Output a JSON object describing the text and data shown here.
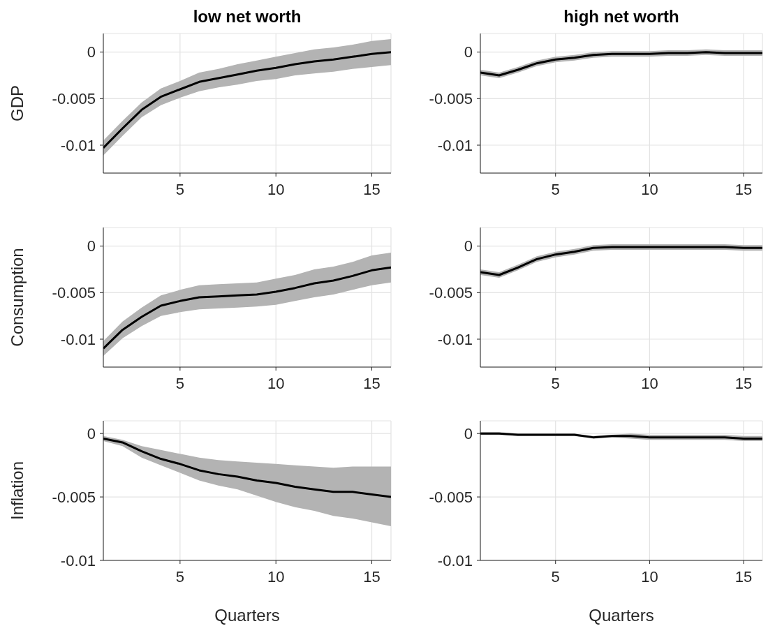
{
  "chart_data": [
    {
      "type": "line",
      "title": "low net worth",
      "ylabel": "GDP",
      "x": [
        1,
        2,
        3,
        4,
        5,
        6,
        7,
        8,
        9,
        10,
        11,
        12,
        13,
        14,
        15,
        16
      ],
      "xlim": [
        1,
        16
      ],
      "xticks": [
        5,
        10,
        15
      ],
      "ylim": [
        -0.013,
        0.002
      ],
      "yticks": [
        -0.01,
        -0.005,
        0
      ],
      "grid": true,
      "series": [
        {
          "color": "#000000",
          "values": [
            -0.0103,
            -0.0082,
            -0.0062,
            -0.0048,
            -0.004,
            -0.0032,
            -0.0028,
            -0.0024,
            -0.002,
            -0.0017,
            -0.0013,
            -0.001,
            -0.0008,
            -0.0005,
            -0.0002,
            0
          ],
          "lower": [
            -0.0111,
            -0.009,
            -0.007,
            -0.0057,
            -0.0049,
            -0.0042,
            -0.0038,
            -0.0035,
            -0.0031,
            -0.0029,
            -0.0025,
            -0.0023,
            -0.0021,
            -0.0018,
            -0.0016,
            -0.0014
          ],
          "upper": [
            -0.0095,
            -0.0074,
            -0.0054,
            -0.0039,
            -0.0031,
            -0.0022,
            -0.0018,
            -0.0013,
            -0.0009,
            -0.0005,
            -0.0001,
            0.0003,
            0.0005,
            0.0008,
            0.0012,
            0.0014
          ]
        }
      ]
    },
    {
      "type": "line",
      "title": "high net worth",
      "x": [
        1,
        2,
        3,
        4,
        5,
        6,
        7,
        8,
        9,
        10,
        11,
        12,
        13,
        14,
        15,
        16
      ],
      "xlim": [
        1,
        16
      ],
      "xticks": [
        5,
        10,
        15
      ],
      "ylim": [
        -0.013,
        0.002
      ],
      "yticks": [
        -0.01,
        -0.005,
        0
      ],
      "grid": true,
      "series": [
        {
          "color": "#000000",
          "values": [
            -0.0022,
            -0.0025,
            -0.0019,
            -0.0012,
            -0.0008,
            -0.0006,
            -0.0003,
            -0.0002,
            -0.0002,
            -0.0002,
            -0.0001,
            -0.0001,
            0,
            -0.0001,
            -0.0001,
            -0.0001
          ],
          "lower": [
            -0.0025,
            -0.0028,
            -0.0022,
            -0.0015,
            -0.0011,
            -0.0009,
            -0.0006,
            -0.0005,
            -0.0005,
            -0.0005,
            -0.0004,
            -0.0004,
            -0.0003,
            -0.0004,
            -0.0004,
            -0.0004
          ],
          "upper": [
            -0.0019,
            -0.0022,
            -0.0016,
            -0.0009,
            -0.0005,
            -0.0003,
            0,
            0.0001,
            0.0001,
            0.0001,
            0.0002,
            0.0002,
            0.0003,
            0.0002,
            0.0002,
            0.0002
          ]
        }
      ]
    },
    {
      "type": "line",
      "ylabel": "Consumption",
      "x": [
        1,
        2,
        3,
        4,
        5,
        6,
        7,
        8,
        9,
        10,
        11,
        12,
        13,
        14,
        15,
        16
      ],
      "xlim": [
        1,
        16
      ],
      "xticks": [
        5,
        10,
        15
      ],
      "ylim": [
        -0.013,
        0.002
      ],
      "yticks": [
        -0.01,
        -0.005,
        0
      ],
      "grid": true,
      "series": [
        {
          "color": "#000000",
          "values": [
            -0.011,
            -0.009,
            -0.0076,
            -0.0064,
            -0.0059,
            -0.0055,
            -0.0054,
            -0.0053,
            -0.0052,
            -0.0049,
            -0.0045,
            -0.004,
            -0.0037,
            -0.0032,
            -0.0026,
            -0.0023
          ],
          "lower": [
            -0.0118,
            -0.0099,
            -0.0086,
            -0.0075,
            -0.0071,
            -0.0068,
            -0.0067,
            -0.0066,
            -0.0065,
            -0.0063,
            -0.0059,
            -0.0055,
            -0.0052,
            -0.0047,
            -0.0042,
            -0.0039
          ],
          "upper": [
            -0.0102,
            -0.0081,
            -0.0066,
            -0.0053,
            -0.0047,
            -0.0042,
            -0.0041,
            -0.004,
            -0.0039,
            -0.0035,
            -0.0031,
            -0.0025,
            -0.0022,
            -0.0017,
            -0.001,
            -0.0007
          ]
        }
      ]
    },
    {
      "type": "line",
      "x": [
        1,
        2,
        3,
        4,
        5,
        6,
        7,
        8,
        9,
        10,
        11,
        12,
        13,
        14,
        15,
        16
      ],
      "xlim": [
        1,
        16
      ],
      "xticks": [
        5,
        10,
        15
      ],
      "ylim": [
        -0.013,
        0.002
      ],
      "yticks": [
        -0.01,
        -0.005,
        0
      ],
      "grid": true,
      "series": [
        {
          "color": "#000000",
          "values": [
            -0.0028,
            -0.0031,
            -0.0023,
            -0.0014,
            -0.0009,
            -0.0006,
            -0.0002,
            -0.0001,
            -0.0001,
            -0.0001,
            -0.0001,
            -0.0001,
            -0.0001,
            -0.0001,
            -0.0002,
            -0.0002
          ],
          "lower": [
            -0.0031,
            -0.0034,
            -0.0026,
            -0.0017,
            -0.0012,
            -0.0009,
            -0.0005,
            -0.0004,
            -0.0004,
            -0.0004,
            -0.0004,
            -0.0004,
            -0.0004,
            -0.0004,
            -0.0005,
            -0.0005
          ],
          "upper": [
            -0.0025,
            -0.0028,
            -0.002,
            -0.0011,
            -0.0006,
            -0.0003,
            0.0001,
            0.0002,
            0.0002,
            0.0002,
            0.0002,
            0.0002,
            0.0002,
            0.0002,
            0.0001,
            0.0001
          ]
        }
      ]
    },
    {
      "type": "line",
      "ylabel": "Inflation",
      "xlabel": "Quarters",
      "x": [
        1,
        2,
        3,
        4,
        5,
        6,
        7,
        8,
        9,
        10,
        11,
        12,
        13,
        14,
        15,
        16
      ],
      "xlim": [
        1,
        16
      ],
      "xticks": [
        5,
        10,
        15
      ],
      "ylim": [
        -0.01,
        0.001
      ],
      "yticks": [
        -0.01,
        -0.005,
        0
      ],
      "grid": true,
      "series": [
        {
          "color": "#000000",
          "values": [
            -0.0004,
            -0.0007,
            -0.0014,
            -0.002,
            -0.0024,
            -0.0029,
            -0.0032,
            -0.0034,
            -0.0037,
            -0.0039,
            -0.0042,
            -0.0044,
            -0.0046,
            -0.0046,
            -0.0048,
            -0.005
          ],
          "lower": [
            -0.0006,
            -0.001,
            -0.0019,
            -0.0025,
            -0.0031,
            -0.0037,
            -0.0041,
            -0.0044,
            -0.0049,
            -0.0054,
            -0.0058,
            -0.0061,
            -0.0065,
            -0.0067,
            -0.007,
            -0.0073
          ],
          "upper": [
            -0.0002,
            -0.0005,
            -0.001,
            -0.0013,
            -0.0016,
            -0.0019,
            -0.0021,
            -0.0022,
            -0.0023,
            -0.0024,
            -0.0025,
            -0.0026,
            -0.0027,
            -0.0026,
            -0.0026,
            -0.0026
          ]
        }
      ]
    },
    {
      "type": "line",
      "xlabel": "Quarters",
      "x": [
        1,
        2,
        3,
        4,
        5,
        6,
        7,
        8,
        9,
        10,
        11,
        12,
        13,
        14,
        15,
        16
      ],
      "xlim": [
        1,
        16
      ],
      "xticks": [
        5,
        10,
        15
      ],
      "ylim": [
        -0.01,
        0.001
      ],
      "yticks": [
        -0.01,
        -0.005,
        0
      ],
      "grid": true,
      "series": [
        {
          "color": "#000000",
          "values": [
            0,
            0,
            -0.0001,
            -0.0001,
            -0.0001,
            -0.0001,
            -0.0003,
            -0.0002,
            -0.0002,
            -0.0003,
            -0.0003,
            -0.0003,
            -0.0003,
            -0.0003,
            -0.0004,
            -0.0004
          ],
          "lower": [
            -0.0001,
            -0.0001,
            -0.0002,
            -0.0002,
            -0.0002,
            -0.0002,
            -0.0004,
            -0.0003,
            -0.0004,
            -0.0005,
            -0.0005,
            -0.0005,
            -0.0005,
            -0.0005,
            -0.0006,
            -0.0006
          ],
          "upper": [
            0.0001,
            0.0001,
            0,
            0,
            0,
            0,
            -0.0002,
            -0.0001,
            0,
            -0.0001,
            -0.0001,
            -0.0001,
            -0.0001,
            -0.0001,
            -0.0002,
            -0.0002
          ]
        }
      ]
    }
  ]
}
